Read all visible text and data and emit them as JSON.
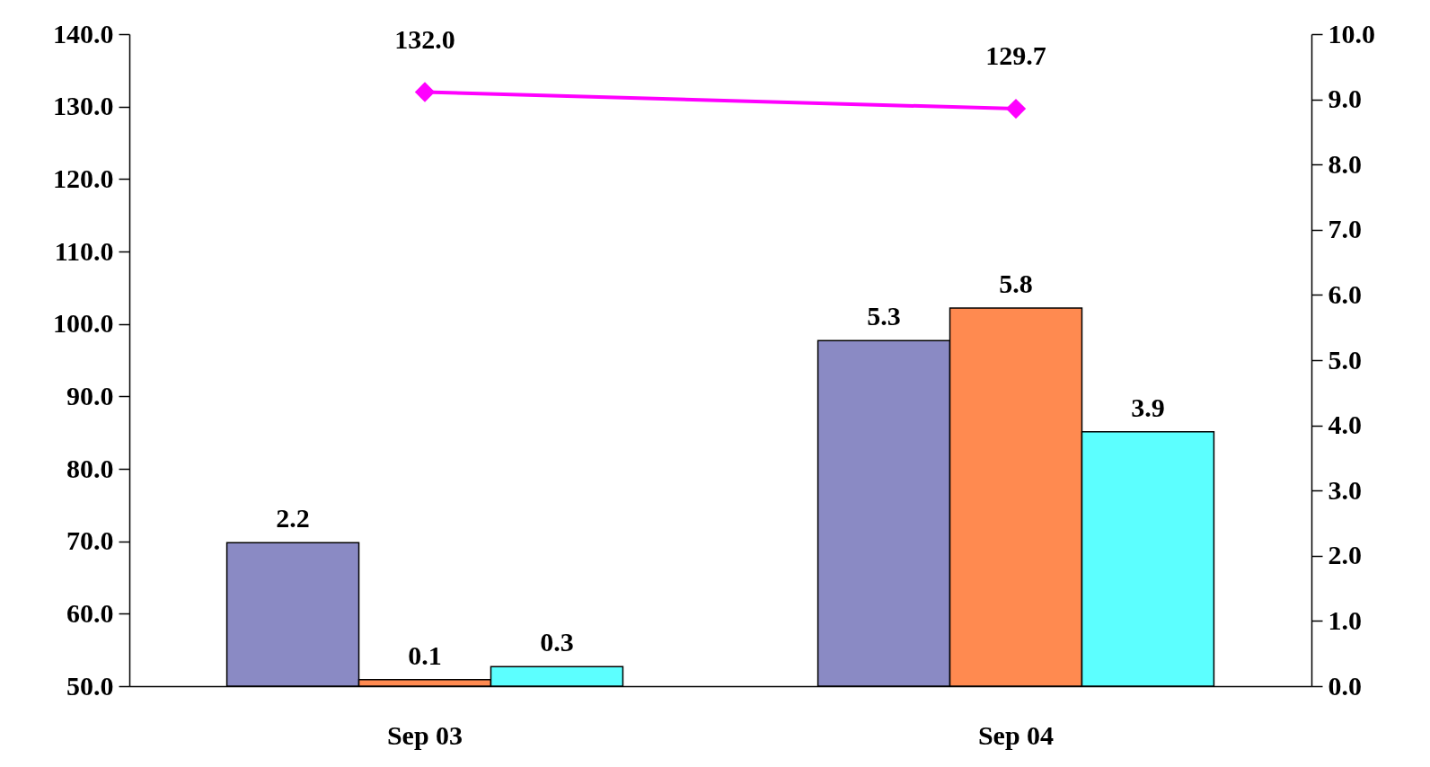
{
  "chart_data": {
    "type": "bar",
    "categories": [
      "Sep 03",
      "Sep 04"
    ],
    "series": [
      {
        "axis": "y2",
        "color": "#8a8ac4",
        "values": [
          2.2,
          5.3
        ]
      },
      {
        "axis": "y2",
        "color": "#ff8a50",
        "values": [
          0.1,
          5.8
        ]
      },
      {
        "axis": "y2",
        "color": "#5cffff",
        "values": [
          0.3,
          3.9
        ]
      },
      {
        "type": "line",
        "axis": "y",
        "color": "#ff00ff",
        "marker": "diamond",
        "values": [
          132.0,
          129.7
        ],
        "value_labels": [
          "132.0",
          "129.7"
        ]
      }
    ],
    "ylim": [
      50,
      140
    ],
    "yticks": [
      {
        "value": 50,
        "label": "50.0"
      },
      {
        "value": 60,
        "label": "60.0"
      },
      {
        "value": 70,
        "label": "70.0"
      },
      {
        "value": 80,
        "label": "80.0"
      },
      {
        "value": 90,
        "label": "90.0"
      },
      {
        "value": 100,
        "label": "100.0"
      },
      {
        "value": 110,
        "label": "110.0"
      },
      {
        "value": 120,
        "label": "120.0"
      },
      {
        "value": 130,
        "label": "130.0"
      },
      {
        "value": 140,
        "label": "140.0"
      }
    ],
    "y2lim": [
      0,
      10
    ],
    "y2ticks": [
      {
        "value": 0,
        "label": "0.0"
      },
      {
        "value": 1,
        "label": "1.0"
      },
      {
        "value": 2,
        "label": "2.0"
      },
      {
        "value": 3,
        "label": "3.0"
      },
      {
        "value": 4,
        "label": "4.0"
      },
      {
        "value": 5,
        "label": "5.0"
      },
      {
        "value": 6,
        "label": "6.0"
      },
      {
        "value": 7,
        "label": "7.0"
      },
      {
        "value": 8,
        "label": "8.0"
      },
      {
        "value": 9,
        "label": "9.0"
      },
      {
        "value": 10,
        "label": "10.0"
      }
    ],
    "data_labels": true,
    "grid": false,
    "legend": false
  }
}
